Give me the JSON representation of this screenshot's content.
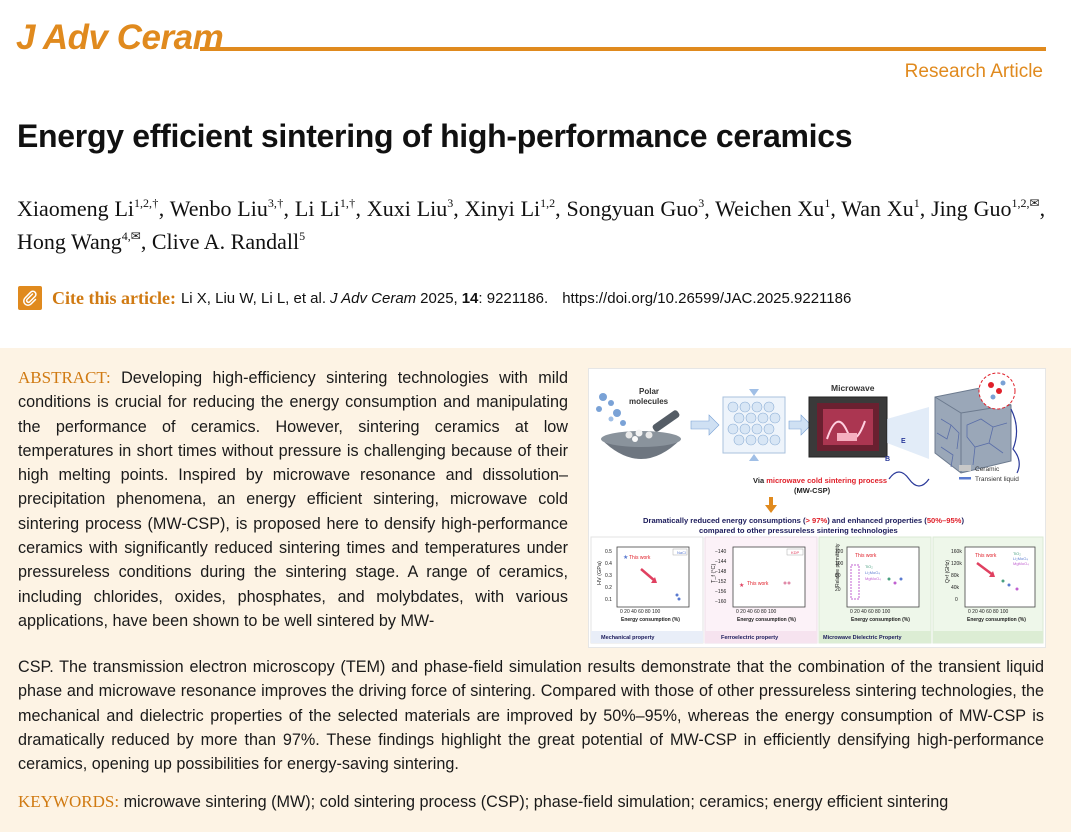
{
  "header": {
    "journal": "J Adv Ceram",
    "article_type": "Research Article"
  },
  "title": "Energy efficient sintering of high-performance ceramics",
  "authors": [
    {
      "name": "Xiaomeng Li",
      "sup": "1,2,†",
      "sep": ", "
    },
    {
      "name": "Wenbo Liu",
      "sup": "3,†",
      "sep": ", "
    },
    {
      "name": "Li Li",
      "sup": "1,†",
      "sep": ", "
    },
    {
      "name": "Xuxi Liu",
      "sup": "3",
      "sep": ", "
    },
    {
      "name": "Xinyi Li",
      "sup": "1,2",
      "sep": ", "
    },
    {
      "name": "Songyuan Guo",
      "sup": "3",
      "sep": ", "
    },
    {
      "name": "Weichen Xu",
      "sup": "1",
      "sep": ", "
    },
    {
      "name": "Wan Xu",
      "sup": "1",
      "sep": ", "
    },
    {
      "name": "Jing Guo",
      "sup": "1,2,✉",
      "sep": ", "
    },
    {
      "name": "Hong Wang",
      "sup": "4,✉",
      "sep": ", "
    },
    {
      "name": "Clive A. Randall",
      "sup": "5",
      "sep": ""
    }
  ],
  "cite": {
    "label": "Cite this article:",
    "authors": "Li X, Liu W, Li L, et al.",
    "journal": "J Adv Ceram",
    "year": "2025,",
    "volume": "14",
    "article_no": ": 9221186.",
    "doi": "https://doi.org/10.26599/JAC.2025.9221186"
  },
  "abstract": {
    "label": "ABSTRACT:",
    "text_part1": "Developing high-efficiency sintering technologies with mild conditions is crucial for reducing the energy consumption and manipulating the performance of ceramics. However, sintering ceramics at low temperatures in short times without pressure is challenging because of their high melting points. Inspired by microwave resonance and dissolution–precipitation phenomena, an energy efficient sintering, microwave cold sintering process (MW-CSP), is proposed here to densify high-performance ceramics with significantly reduced sintering times and temperatures under pressureless conditions during the sintering stage. A range of ceramics, including chlorides, oxides, phosphates, and molybdates, with various applications, have been shown to be well sintered by MW-",
    "text_part2": "CSP. The transmission electron microscopy (TEM) and phase-field simulation results demonstrate that the combination of the transient liquid phase and microwave resonance improves the driving force of sintering. Compared with those of other pressureless sintering technologies, the mechanical and dielectric properties of the selected materials are improved by 50%–95%, whereas the energy consumption of MW-CSP is dramatically reduced by more than 97%. These findings highlight the great potential of MW-CSP in efficiently densifying high-performance ceramics, opening up possibilities for energy-saving sintering."
  },
  "keywords": {
    "label": "KEYWORDS:",
    "text": "microwave sintering (MW); cold sintering process (CSP); phase-field simulation; ceramics; energy efficient sintering"
  },
  "graphic": {
    "label_polar": "Polar",
    "label_molecules": "molecules",
    "label_microwave": "Microwave",
    "label_ceramic": "Ceramic",
    "label_transient": "Transient liquid",
    "via_prefix": "Via ",
    "via_highlight": "microwave cold sintering process",
    "via_abbr": "(MW-CSP)",
    "summary_1": "Dramatically reduced energy consumptions (",
    "summary_gt": "> 97%",
    "summary_2": ") and enhanced properties (",
    "summary_pct": "50%–95%",
    "summary_3": ")",
    "summary_line2": "compared to other pressureless sintering technologies",
    "x_label": "Energy consumption (%)",
    "x_ticks": "0  20  40  60  80  100",
    "this_work": "This work",
    "panels": [
      {
        "ylabel": "HV (GPa)",
        "legend": "NaCl",
        "yticks": [
          "0.5",
          "0.4",
          "0.3",
          "0.2",
          "0.1"
        ],
        "caption": "Mechanical property"
      },
      {
        "ylabel": "T_f (°C)",
        "legend": "KDP",
        "yticks": [
          "−140",
          "−144",
          "−148",
          "−152",
          "−156",
          "−160"
        ],
        "caption": "Ferroelectric property"
      },
      {
        "ylabel": "Relative permittivity",
        "legend": "",
        "yticks": [
          "120",
          "100",
          "80",
          "20"
        ],
        "caption": "Microwave    Dielectric    Property"
      },
      {
        "ylabel": "Q×f (GHz)",
        "legend": "",
        "yticks": [
          "160k",
          "120k",
          "80k",
          "40k",
          "0"
        ],
        "caption": ""
      }
    ],
    "legend_panel3": [
      "TiO₂",
      "Li₂MoO₄",
      "MgMoO₄"
    ],
    "legend_panel4": [
      "TiO₂",
      "Li₂MoO₄",
      "MgMoO₄"
    ]
  },
  "colors": {
    "accent": "#e08a1e",
    "abstract_bg": "#fdf3e4",
    "highlight_red": "#e0202a"
  }
}
